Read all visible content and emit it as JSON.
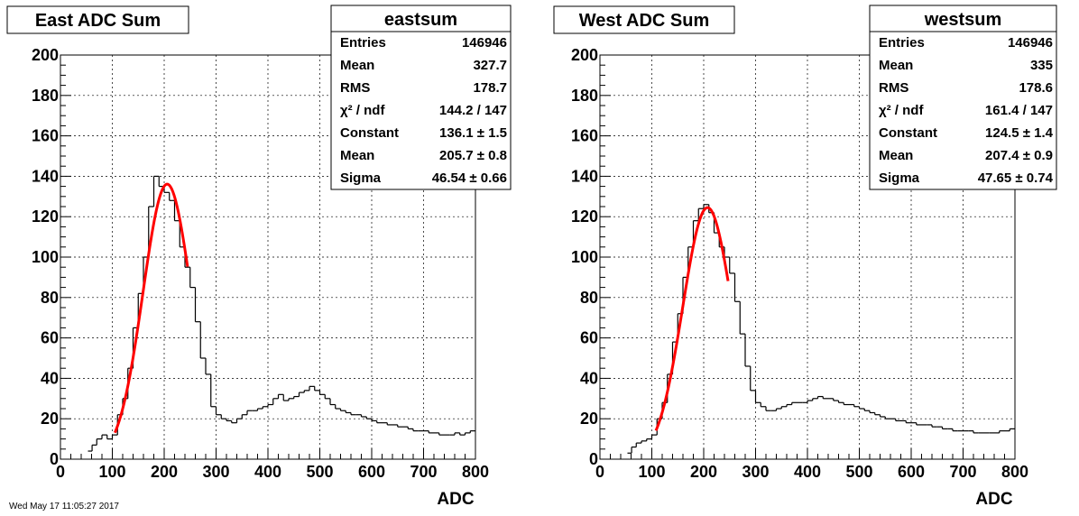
{
  "footer_text": "Wed May 17 11:05:27 2017",
  "chart_data": [
    {
      "type": "histogram",
      "title": "East ADC Sum",
      "xlabel": "ADC",
      "ylabel": "",
      "xlim": [
        0,
        800
      ],
      "ylim": [
        0,
        200
      ],
      "xticks": [
        0,
        100,
        200,
        300,
        400,
        500,
        600,
        700,
        800
      ],
      "yticks": [
        0,
        20,
        40,
        60,
        80,
        100,
        120,
        140,
        160,
        180,
        200
      ],
      "grid": true,
      "fit_color": "#ff0000",
      "hist_color": "#000000",
      "stats": {
        "name": "eastsum",
        "rows": [
          {
            "label": "Entries",
            "value": "146946"
          },
          {
            "label": "Mean",
            "value": "327.7"
          },
          {
            "label": "RMS",
            "value": "178.7"
          },
          {
            "label": "χ² / ndf",
            "value": "144.2 / 147"
          },
          {
            "label": "Constant",
            "value": "136.1 ± 1.5"
          },
          {
            "label": "Mean",
            "value": "205.7 ± 0.8"
          },
          {
            "label": "Sigma",
            "value": "46.54 ± 0.66"
          }
        ]
      },
      "fit": {
        "constant": 136.1,
        "mean": 205.7,
        "sigma": 46.54,
        "range": [
          105,
          245
        ]
      },
      "bin_centers": [
        57,
        65,
        75,
        85,
        95,
        105,
        115,
        125,
        135,
        145,
        155,
        165,
        175,
        185,
        195,
        205,
        215,
        225,
        235,
        245,
        255,
        265,
        275,
        285,
        295,
        305,
        315,
        325,
        335,
        345,
        355,
        365,
        375,
        385,
        395,
        405,
        415,
        425,
        435,
        445,
        455,
        465,
        475,
        485,
        495,
        505,
        515,
        525,
        535,
        545,
        555,
        565,
        575,
        585,
        595,
        605,
        615,
        625,
        635,
        645,
        655,
        665,
        675,
        685,
        695,
        705,
        715,
        725,
        735,
        745,
        755,
        765,
        775,
        785,
        795
      ],
      "bin_values": [
        4,
        7,
        10,
        12,
        10,
        12,
        22,
        30,
        45,
        65,
        82,
        100,
        125,
        140,
        135,
        132,
        128,
        118,
        105,
        95,
        85,
        68,
        50,
        42,
        26,
        22,
        20,
        19,
        18,
        20,
        22,
        24,
        24,
        25,
        26,
        27,
        30,
        32,
        29,
        30,
        31,
        33,
        34,
        36,
        34,
        32,
        30,
        27,
        25,
        24,
        23,
        22,
        22,
        21,
        20,
        19,
        18,
        18,
        17,
        17,
        16,
        16,
        15,
        14,
        14,
        14,
        13,
        13,
        12,
        12,
        12,
        13,
        12,
        13,
        14
      ]
    },
    {
      "type": "histogram",
      "title": "West ADC Sum",
      "xlabel": "ADC",
      "ylabel": "",
      "xlim": [
        0,
        800
      ],
      "ylim": [
        0,
        200
      ],
      "xticks": [
        0,
        100,
        200,
        300,
        400,
        500,
        600,
        700,
        800
      ],
      "yticks": [
        0,
        20,
        40,
        60,
        80,
        100,
        120,
        140,
        160,
        180,
        200
      ],
      "grid": true,
      "fit_color": "#ff0000",
      "hist_color": "#000000",
      "stats": {
        "name": "westsum",
        "rows": [
          {
            "label": "Entries",
            "value": "146946"
          },
          {
            "label": "Mean",
            "value": "335"
          },
          {
            "label": "RMS",
            "value": "178.6"
          },
          {
            "label": "χ² / ndf",
            "value": "161.4 / 147"
          },
          {
            "label": "Constant",
            "value": "124.5 ± 1.4"
          },
          {
            "label": "Mean",
            "value": "207.4 ± 0.9"
          },
          {
            "label": "Sigma",
            "value": "47.65 ± 0.74"
          }
        ]
      },
      "fit": {
        "constant": 124.5,
        "mean": 207.4,
        "sigma": 47.65,
        "range": [
          108,
          247
        ]
      },
      "bin_centers": [
        57,
        65,
        75,
        85,
        95,
        105,
        115,
        125,
        135,
        145,
        155,
        165,
        175,
        185,
        195,
        205,
        215,
        225,
        235,
        245,
        255,
        265,
        275,
        285,
        295,
        305,
        315,
        325,
        335,
        345,
        355,
        365,
        375,
        385,
        395,
        405,
        415,
        425,
        435,
        445,
        455,
        465,
        475,
        485,
        495,
        505,
        515,
        525,
        535,
        545,
        555,
        565,
        575,
        585,
        595,
        605,
        615,
        625,
        635,
        645,
        655,
        665,
        675,
        685,
        695,
        705,
        715,
        725,
        735,
        745,
        755,
        765,
        775,
        785,
        795
      ],
      "bin_values": [
        3,
        6,
        8,
        9,
        10,
        12,
        20,
        28,
        42,
        58,
        72,
        90,
        105,
        118,
        124,
        126,
        122,
        112,
        105,
        100,
        92,
        78,
        62,
        46,
        34,
        28,
        26,
        24,
        24,
        25,
        26,
        27,
        28,
        28,
        28,
        29,
        30,
        31,
        30,
        30,
        29,
        28,
        27,
        27,
        26,
        25,
        24,
        23,
        22,
        21,
        20,
        20,
        19,
        19,
        18,
        18,
        17,
        17,
        17,
        16,
        16,
        15,
        15,
        14,
        14,
        14,
        14,
        13,
        13,
        13,
        13,
        13,
        14,
        14,
        15
      ]
    }
  ]
}
